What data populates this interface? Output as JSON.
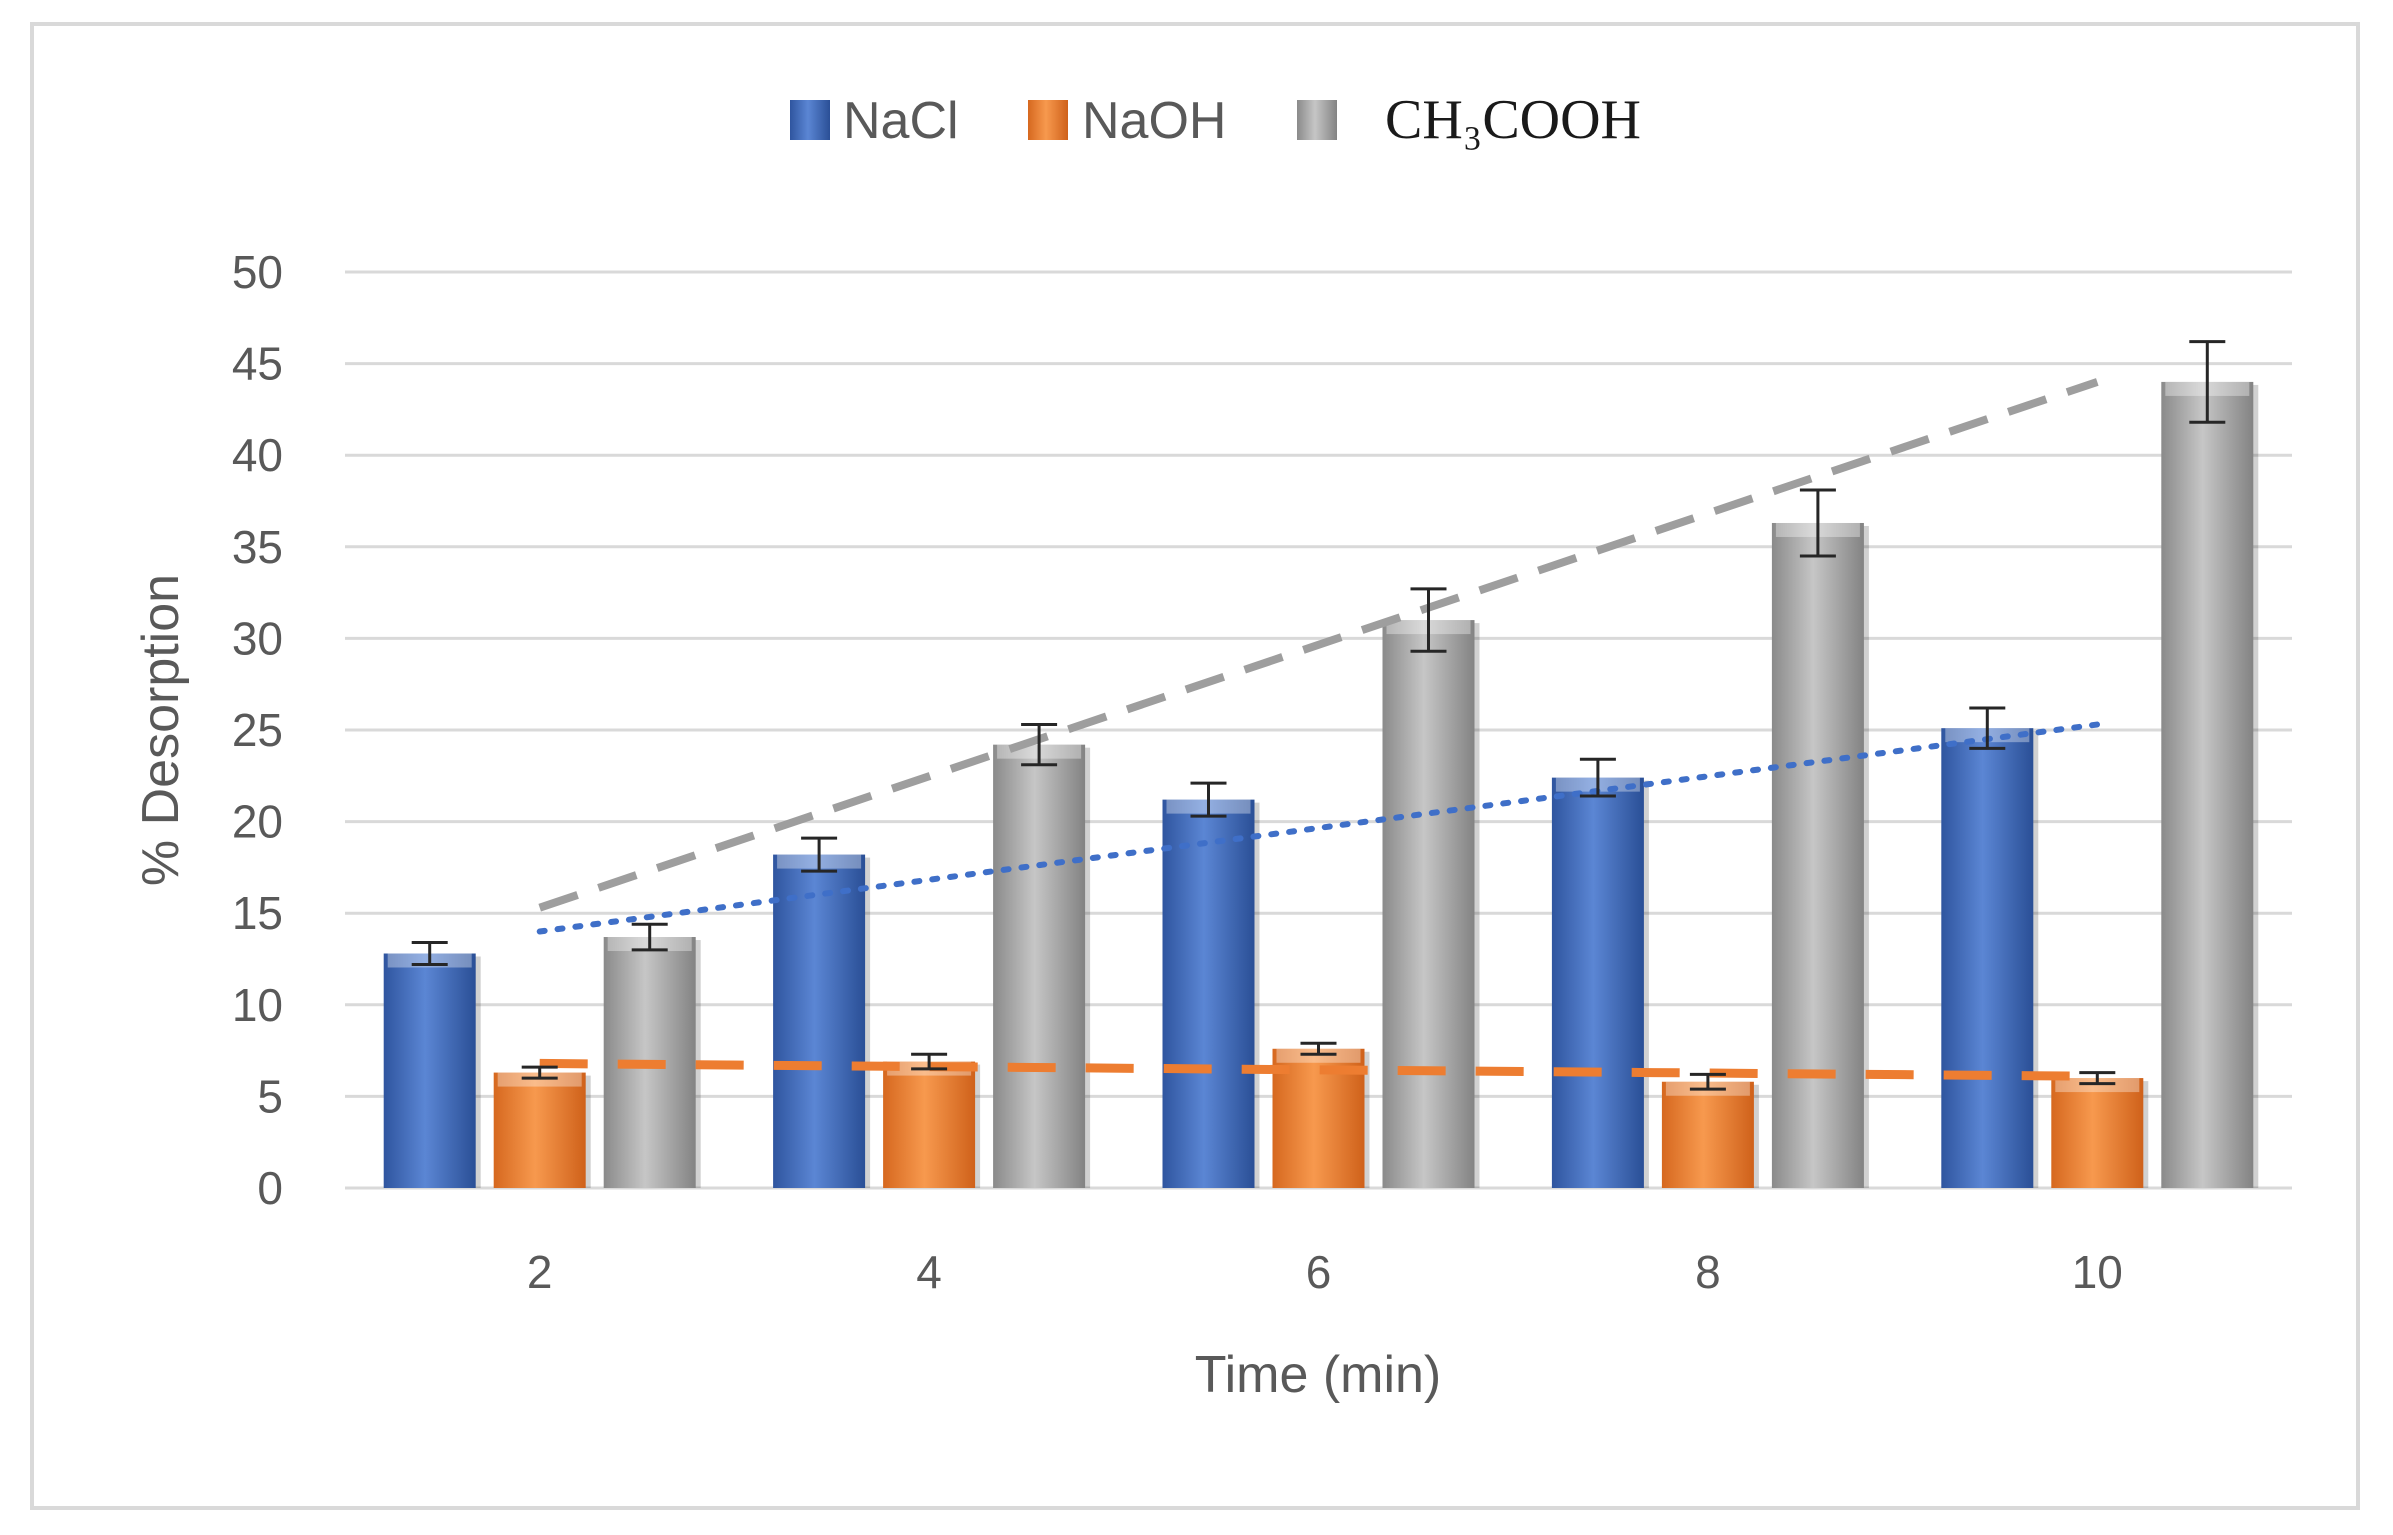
{
  "chart_data": {
    "type": "bar",
    "title": "",
    "xlabel": "Time (min)",
    "ylabel": "% Desorption",
    "categories": [
      "2",
      "4",
      "6",
      "8",
      "10"
    ],
    "ylim": [
      0,
      50
    ],
    "yticks": [
      0,
      5,
      10,
      15,
      20,
      25,
      30,
      35,
      40,
      45,
      50
    ],
    "grid": true,
    "legend_position": "top",
    "series": [
      {
        "name": "NaCl",
        "color": "#4472c4",
        "values": [
          12.8,
          18.2,
          21.2,
          22.4,
          25.1
        ],
        "errors": [
          0.6,
          0.9,
          0.9,
          1.0,
          1.1
        ],
        "trendline": {
          "style": "dotted",
          "start": 14.0,
          "end": 25.3
        }
      },
      {
        "name": "NaOH",
        "color": "#ed7d31",
        "values": [
          6.3,
          6.9,
          7.6,
          5.8,
          6.0
        ],
        "errors": [
          0.3,
          0.4,
          0.3,
          0.4,
          0.3
        ],
        "trendline": {
          "style": "dashed",
          "start": 6.8,
          "end": 6.1
        }
      },
      {
        "name": "CH₃COOH",
        "color": "#a5a5a5",
        "values": [
          13.7,
          24.2,
          31.0,
          36.3,
          44.0
        ],
        "errors": [
          0.7,
          1.1,
          1.7,
          1.8,
          2.2
        ],
        "trendline": {
          "style": "dashed",
          "start": 15.3,
          "end": 44.0
        }
      }
    ]
  }
}
